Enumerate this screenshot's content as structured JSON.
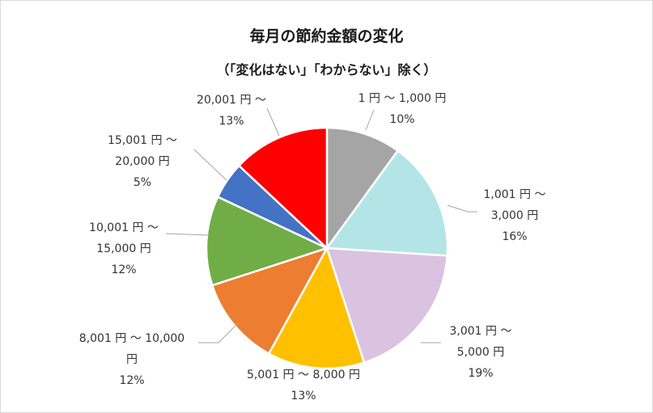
{
  "chart_data": {
    "type": "pie",
    "title": "毎月の節約金額の変化",
    "subtitle": "（「変化はない」「わからない」除く）",
    "slices": [
      {
        "label_lines": [
          "1 円 ～ 1,000 円"
        ],
        "value": 10,
        "value_label": "10%",
        "color": "#a5a5a5"
      },
      {
        "label_lines": [
          "1,001 円 ～",
          "3,000 円"
        ],
        "value": 16,
        "value_label": "16%",
        "color": "#b3e5e6"
      },
      {
        "label_lines": [
          "3,001 円 ～",
          "5,000 円"
        ],
        "value": 19,
        "value_label": "19%",
        "color": "#d9c3e1"
      },
      {
        "label_lines": [
          "5,001 円 ～ 8,000 円"
        ],
        "value": 13,
        "value_label": "13%",
        "color": "#ffc000"
      },
      {
        "label_lines": [
          "8,001 円 ～ 10,000",
          "円"
        ],
        "value": 12,
        "value_label": "12%",
        "color": "#ed7d31"
      },
      {
        "label_lines": [
          "10,001 円 ～",
          "15,000 円"
        ],
        "value": 12,
        "value_label": "12%",
        "color": "#70ad47"
      },
      {
        "label_lines": [
          "15,001 円 ～",
          "20,000 円"
        ],
        "value": 5,
        "value_label": "5%",
        "color": "#4472c4"
      },
      {
        "label_lines": [
          "20,001 円 ～"
        ],
        "value": 13,
        "value_label": "13%",
        "color": "#ff0000"
      }
    ],
    "legend": "none"
  }
}
